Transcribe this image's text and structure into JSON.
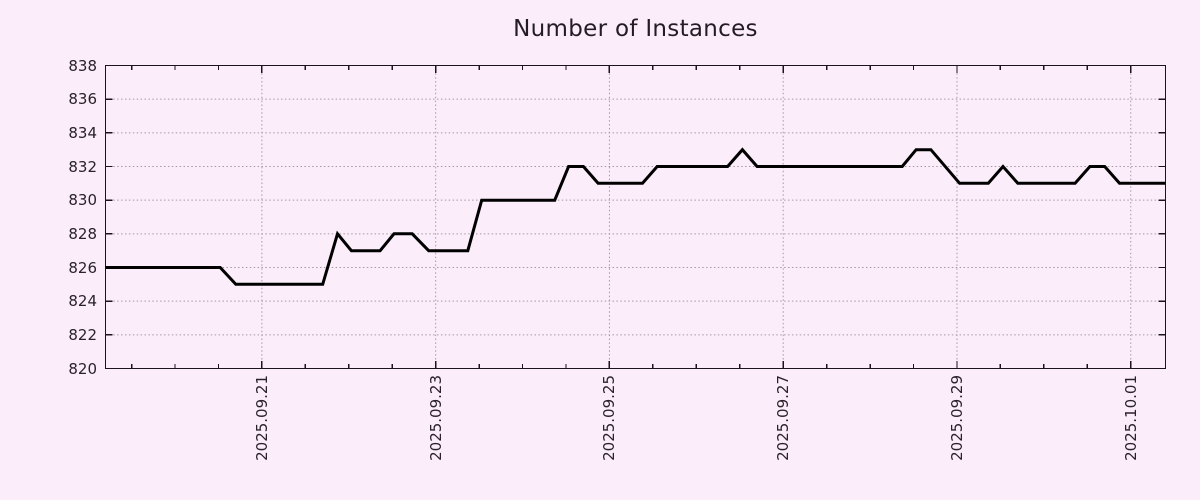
{
  "title": "Number of Instances",
  "chart_data": {
    "type": "line",
    "title": "Number of Instances",
    "xlabel": "",
    "ylabel": "",
    "grid": true,
    "legend": false,
    "ylim": [
      820,
      838
    ],
    "y_tick_step": 2,
    "y_tick_labels": [
      "820",
      "822",
      "824",
      "826",
      "828",
      "830",
      "832",
      "834",
      "836",
      "838"
    ],
    "x_axis_note": "days measured from 2025.09.19 00:00",
    "x_range_days": [
      0.2,
      12.4
    ],
    "x_major_tick_days": [
      2,
      4,
      6,
      8,
      10,
      12
    ],
    "x_tick_labels": [
      "2025.09.21",
      "2025.09.23",
      "2025.09.25",
      "2025.09.27",
      "2025.09.29",
      "2025.10.01"
    ],
    "x_minor_tick_interval_days": 0.5,
    "series": [
      {
        "name": "Number of Instances",
        "points_day_value": [
          [
            0.2,
            826
          ],
          [
            1.52,
            826
          ],
          [
            1.7,
            825
          ],
          [
            2.7,
            825
          ],
          [
            2.87,
            828
          ],
          [
            3.03,
            827
          ],
          [
            3.36,
            827
          ],
          [
            3.52,
            828
          ],
          [
            3.73,
            828
          ],
          [
            3.92,
            827
          ],
          [
            4.37,
            827
          ],
          [
            4.53,
            830
          ],
          [
            5.37,
            830
          ],
          [
            5.53,
            832
          ],
          [
            5.7,
            832
          ],
          [
            5.87,
            831
          ],
          [
            6.38,
            831
          ],
          [
            6.55,
            832
          ],
          [
            7.36,
            832
          ],
          [
            7.53,
            833
          ],
          [
            7.7,
            832
          ],
          [
            9.37,
            832
          ],
          [
            9.53,
            833
          ],
          [
            9.7,
            833
          ],
          [
            10.03,
            831
          ],
          [
            10.36,
            831
          ],
          [
            10.53,
            832
          ],
          [
            10.7,
            831
          ],
          [
            11.36,
            831
          ],
          [
            11.53,
            832
          ],
          [
            11.7,
            832
          ],
          [
            11.87,
            831
          ],
          [
            12.4,
            831
          ]
        ]
      }
    ],
    "colors": {
      "background": "#fbeefa",
      "line": "#000000",
      "border": "#1c141c",
      "grid": "#a39aa3",
      "text": "#2a222a"
    }
  }
}
